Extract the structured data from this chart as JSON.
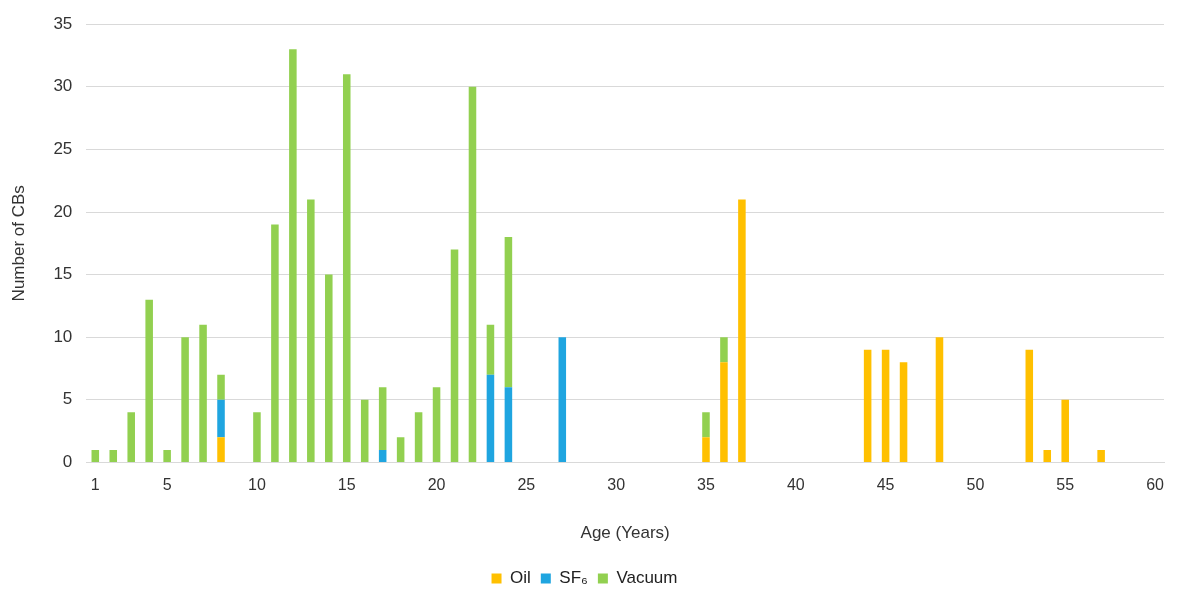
{
  "chart_data": {
    "type": "bar",
    "stacked": true,
    "xlabel": "Age (Years)",
    "ylabel": "Number of CBs",
    "x": [
      1,
      2,
      3,
      4,
      5,
      6,
      7,
      8,
      9,
      10,
      11,
      12,
      13,
      14,
      15,
      16,
      17,
      18,
      19,
      20,
      21,
      22,
      23,
      24,
      25,
      26,
      27,
      28,
      29,
      30,
      31,
      32,
      33,
      34,
      35,
      36,
      37,
      38,
      39,
      40,
      41,
      42,
      43,
      44,
      45,
      46,
      47,
      48,
      49,
      50,
      51,
      52,
      53,
      54,
      55,
      56,
      57
    ],
    "xlim": [
      0.5,
      60.5
    ],
    "xticks": [
      1,
      5,
      10,
      15,
      20,
      25,
      30,
      35,
      40,
      45,
      50,
      55,
      60
    ],
    "series": [
      {
        "name": "Oil",
        "color": "#ffc000",
        "values": [
          null,
          null,
          null,
          null,
          null,
          null,
          null,
          2,
          null,
          null,
          null,
          null,
          null,
          null,
          null,
          null,
          null,
          null,
          null,
          null,
          null,
          null,
          null,
          null,
          null,
          null,
          null,
          null,
          null,
          null,
          null,
          null,
          null,
          null,
          2,
          8,
          21,
          null,
          null,
          null,
          null,
          null,
          null,
          9,
          9,
          8,
          null,
          10,
          null,
          null,
          null,
          null,
          9,
          1,
          5,
          null,
          1
        ]
      },
      {
        "name": "SF₆",
        "color": "#1fa5e0",
        "values": [
          null,
          null,
          null,
          null,
          null,
          null,
          null,
          3,
          null,
          null,
          null,
          null,
          null,
          null,
          null,
          null,
          1,
          null,
          null,
          null,
          null,
          null,
          7,
          6,
          null,
          null,
          10,
          null,
          null,
          null,
          null,
          null,
          null,
          null,
          null,
          null,
          null,
          null,
          null,
          null,
          null,
          null,
          null,
          null,
          null,
          null,
          null,
          null,
          null,
          null,
          null,
          null,
          null,
          null,
          null,
          null,
          null
        ]
      },
      {
        "name": "Vacuum",
        "color": "#92d050",
        "values": [
          1,
          1,
          4,
          13,
          1,
          10,
          11,
          2,
          null,
          4,
          19,
          33,
          21,
          15,
          31,
          5,
          5,
          2,
          4,
          6,
          17,
          30,
          4,
          12,
          null,
          null,
          null,
          null,
          null,
          null,
          null,
          null,
          null,
          null,
          2,
          2,
          null,
          null,
          null,
          null,
          null,
          null,
          null,
          null,
          null,
          null,
          null,
          null,
          null,
          null,
          null,
          null,
          null,
          null,
          null,
          null,
          null
        ]
      }
    ],
    "ylim": [
      0,
      35
    ],
    "yticks": [
      0,
      5,
      10,
      15,
      20,
      25,
      30,
      35
    ],
    "grid": "y",
    "legend": "bottom"
  }
}
